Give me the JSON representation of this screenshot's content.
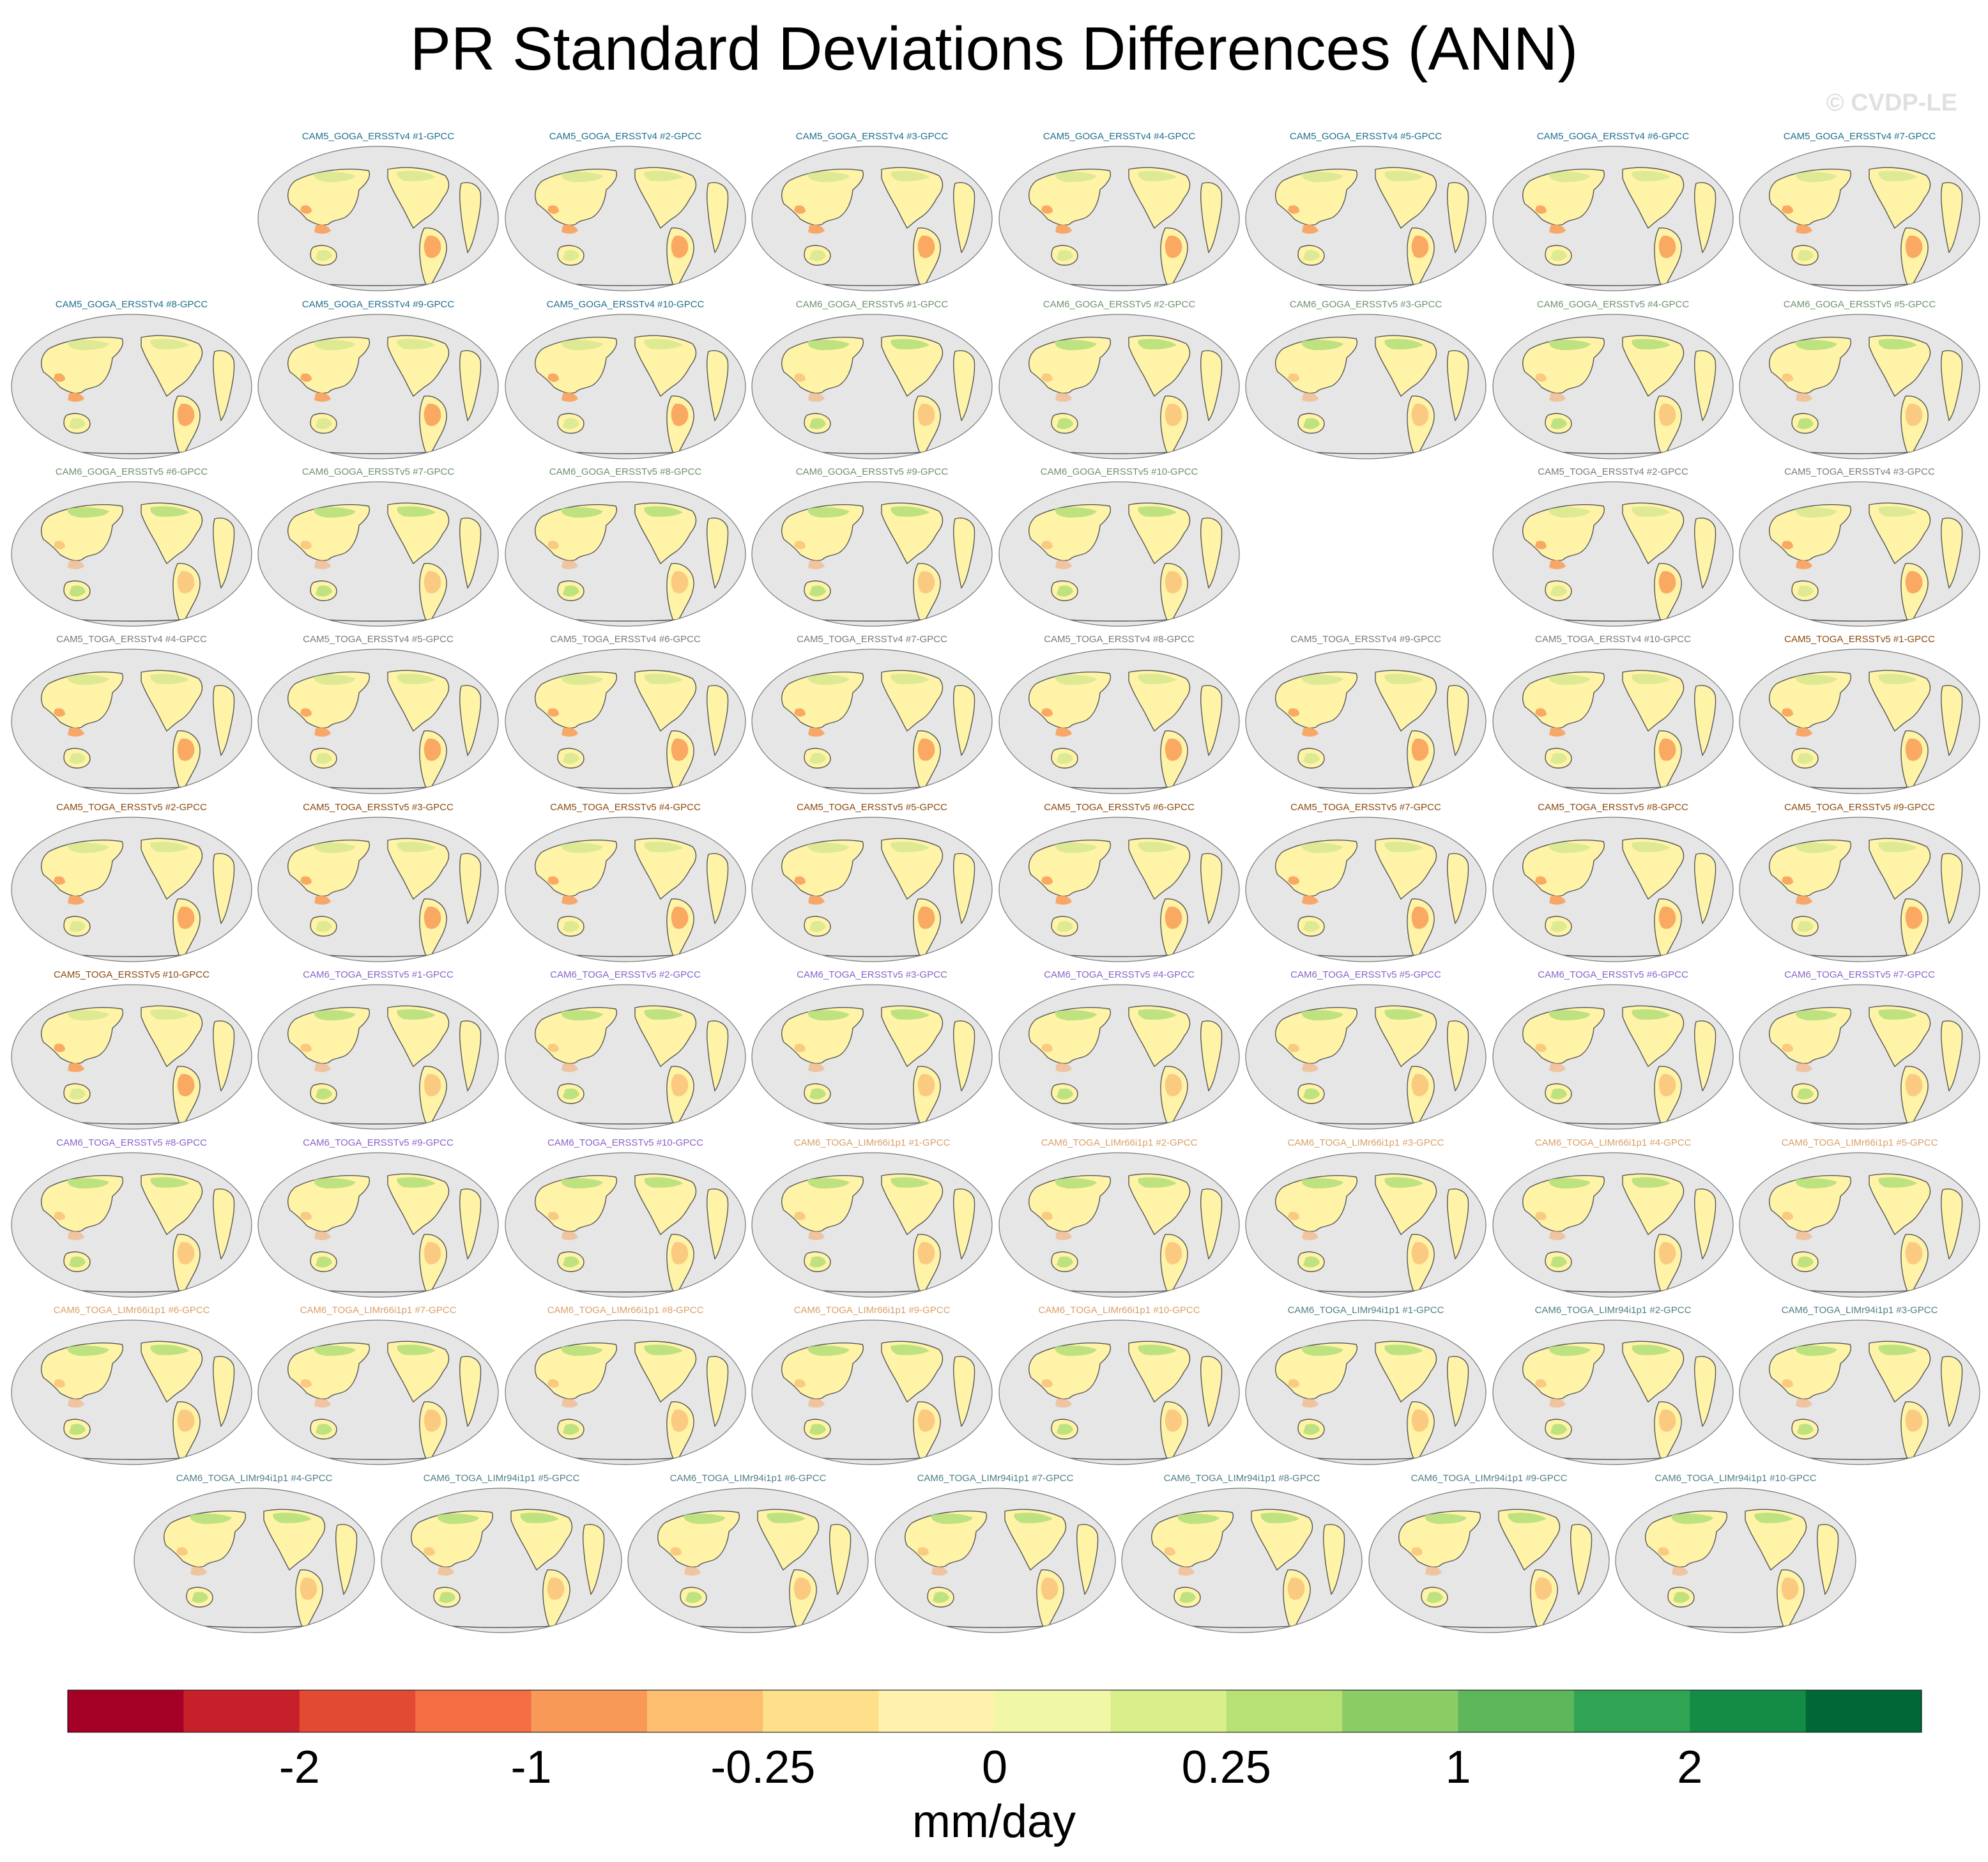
{
  "title": "PR Standard Deviations Differences (ANN)",
  "watermark": "© CVDP-LE",
  "chart_data": {
    "type": "heatmap",
    "projection": "global map (Robinson-like ellipse), Pacific-centered",
    "title": "PR Standard Deviations Differences (ANN)",
    "grid": false,
    "panels": [
      {
        "label": "CAM5_GOGA_ERSSTv4 #1-GPCC",
        "group": "CAM5_GOGA_ERSSTv4"
      },
      {
        "label": "CAM5_GOGA_ERSSTv4 #2-GPCC",
        "group": "CAM5_GOGA_ERSSTv4"
      },
      {
        "label": "CAM5_GOGA_ERSSTv4 #3-GPCC",
        "group": "CAM5_GOGA_ERSSTv4"
      },
      {
        "label": "CAM5_GOGA_ERSSTv4 #4-GPCC",
        "group": "CAM5_GOGA_ERSSTv4"
      },
      {
        "label": "CAM5_GOGA_ERSSTv4 #5-GPCC",
        "group": "CAM5_GOGA_ERSSTv4"
      },
      {
        "label": "CAM5_GOGA_ERSSTv4 #6-GPCC",
        "group": "CAM5_GOGA_ERSSTv4"
      },
      {
        "label": "CAM5_GOGA_ERSSTv4 #7-GPCC",
        "group": "CAM5_GOGA_ERSSTv4"
      },
      {
        "label": "CAM5_GOGA_ERSSTv4 #8-GPCC",
        "group": "CAM5_GOGA_ERSSTv4"
      },
      {
        "label": "CAM5_GOGA_ERSSTv4 #9-GPCC",
        "group": "CAM5_GOGA_ERSSTv4"
      },
      {
        "label": "CAM5_GOGA_ERSSTv4 #10-GPCC",
        "group": "CAM5_GOGA_ERSSTv4"
      },
      {
        "label": "CAM6_GOGA_ERSSTv5 #1-GPCC",
        "group": "CAM6_GOGA_ERSSTv5"
      },
      {
        "label": "CAM6_GOGA_ERSSTv5 #2-GPCC",
        "group": "CAM6_GOGA_ERSSTv5"
      },
      {
        "label": "CAM6_GOGA_ERSSTv5 #3-GPCC",
        "group": "CAM6_GOGA_ERSSTv5"
      },
      {
        "label": "CAM6_GOGA_ERSSTv5 #4-GPCC",
        "group": "CAM6_GOGA_ERSSTv5"
      },
      {
        "label": "CAM6_GOGA_ERSSTv5 #5-GPCC",
        "group": "CAM6_GOGA_ERSSTv5"
      },
      {
        "label": "CAM6_GOGA_ERSSTv5 #6-GPCC",
        "group": "CAM6_GOGA_ERSSTv5"
      },
      {
        "label": "CAM6_GOGA_ERSSTv5 #7-GPCC",
        "group": "CAM6_GOGA_ERSSTv5"
      },
      {
        "label": "CAM6_GOGA_ERSSTv5 #8-GPCC",
        "group": "CAM6_GOGA_ERSSTv5"
      },
      {
        "label": "CAM6_GOGA_ERSSTv5 #9-GPCC",
        "group": "CAM6_GOGA_ERSSTv5"
      },
      {
        "label": "CAM6_GOGA_ERSSTv5 #10-GPCC",
        "group": "CAM6_GOGA_ERSSTv5"
      },
      {
        "label": "CAM5_TOGA_ERSSTv4 #2-GPCC",
        "group": "CAM5_TOGA_ERSSTv4"
      },
      {
        "label": "CAM5_TOGA_ERSSTv4 #3-GPCC",
        "group": "CAM5_TOGA_ERSSTv4"
      },
      {
        "label": "CAM5_TOGA_ERSSTv4 #4-GPCC",
        "group": "CAM5_TOGA_ERSSTv4"
      },
      {
        "label": "CAM5_TOGA_ERSSTv4 #5-GPCC",
        "group": "CAM5_TOGA_ERSSTv4"
      },
      {
        "label": "CAM5_TOGA_ERSSTv4 #6-GPCC",
        "group": "CAM5_TOGA_ERSSTv4"
      },
      {
        "label": "CAM5_TOGA_ERSSTv4 #7-GPCC",
        "group": "CAM5_TOGA_ERSSTv4"
      },
      {
        "label": "CAM5_TOGA_ERSSTv4 #8-GPCC",
        "group": "CAM5_TOGA_ERSSTv4"
      },
      {
        "label": "CAM5_TOGA_ERSSTv4 #9-GPCC",
        "group": "CAM5_TOGA_ERSSTv4"
      },
      {
        "label": "CAM5_TOGA_ERSSTv4 #10-GPCC",
        "group": "CAM5_TOGA_ERSSTv4"
      },
      {
        "label": "CAM5_TOGA_ERSSTv5 #1-GPCC",
        "group": "CAM5_TOGA_ERSSTv5"
      },
      {
        "label": "CAM5_TOGA_ERSSTv5 #2-GPCC",
        "group": "CAM5_TOGA_ERSSTv5"
      },
      {
        "label": "CAM5_TOGA_ERSSTv5 #3-GPCC",
        "group": "CAM5_TOGA_ERSSTv5"
      },
      {
        "label": "CAM5_TOGA_ERSSTv5 #4-GPCC",
        "group": "CAM5_TOGA_ERSSTv5"
      },
      {
        "label": "CAM5_TOGA_ERSSTv5 #5-GPCC",
        "group": "CAM5_TOGA_ERSSTv5"
      },
      {
        "label": "CAM5_TOGA_ERSSTv5 #6-GPCC",
        "group": "CAM5_TOGA_ERSSTv5"
      },
      {
        "label": "CAM5_TOGA_ERSSTv5 #7-GPCC",
        "group": "CAM5_TOGA_ERSSTv5"
      },
      {
        "label": "CAM5_TOGA_ERSSTv5 #8-GPCC",
        "group": "CAM5_TOGA_ERSSTv5"
      },
      {
        "label": "CAM5_TOGA_ERSSTv5 #9-GPCC",
        "group": "CAM5_TOGA_ERSSTv5"
      },
      {
        "label": "CAM5_TOGA_ERSSTv5 #10-GPCC",
        "group": "CAM5_TOGA_ERSSTv5"
      },
      {
        "label": "CAM6_TOGA_ERSSTv5 #1-GPCC",
        "group": "CAM6_TOGA_ERSSTv5"
      },
      {
        "label": "CAM6_TOGA_ERSSTv5 #2-GPCC",
        "group": "CAM6_TOGA_ERSSTv5"
      },
      {
        "label": "CAM6_TOGA_ERSSTv5 #3-GPCC",
        "group": "CAM6_TOGA_ERSSTv5"
      },
      {
        "label": "CAM6_TOGA_ERSSTv5 #4-GPCC",
        "group": "CAM6_TOGA_ERSSTv5"
      },
      {
        "label": "CAM6_TOGA_ERSSTv5 #5-GPCC",
        "group": "CAM6_TOGA_ERSSTv5"
      },
      {
        "label": "CAM6_TOGA_ERSSTv5 #6-GPCC",
        "group": "CAM6_TOGA_ERSSTv5"
      },
      {
        "label": "CAM6_TOGA_ERSSTv5 #7-GPCC",
        "group": "CAM6_TOGA_ERSSTv5"
      },
      {
        "label": "CAM6_TOGA_ERSSTv5 #8-GPCC",
        "group": "CAM6_TOGA_ERSSTv5"
      },
      {
        "label": "CAM6_TOGA_ERSSTv5 #9-GPCC",
        "group": "CAM6_TOGA_ERSSTv5"
      },
      {
        "label": "CAM6_TOGA_ERSSTv5 #10-GPCC",
        "group": "CAM6_TOGA_ERSSTv5"
      },
      {
        "label": "CAM6_TOGA_LIMr66i1p1 #1-GPCC",
        "group": "CAM6_TOGA_LIMr66i1p1"
      },
      {
        "label": "CAM6_TOGA_LIMr66i1p1 #2-GPCC",
        "group": "CAM6_TOGA_LIMr66i1p1"
      },
      {
        "label": "CAM6_TOGA_LIMr66i1p1 #3-GPCC",
        "group": "CAM6_TOGA_LIMr66i1p1"
      },
      {
        "label": "CAM6_TOGA_LIMr66i1p1 #4-GPCC",
        "group": "CAM6_TOGA_LIMr66i1p1"
      },
      {
        "label": "CAM6_TOGA_LIMr66i1p1 #5-GPCC",
        "group": "CAM6_TOGA_LIMr66i1p1"
      },
      {
        "label": "CAM6_TOGA_LIMr66i1p1 #6-GPCC",
        "group": "CAM6_TOGA_LIMr66i1p1"
      },
      {
        "label": "CAM6_TOGA_LIMr66i1p1 #7-GPCC",
        "group": "CAM6_TOGA_LIMr66i1p1"
      },
      {
        "label": "CAM6_TOGA_LIMr66i1p1 #8-GPCC",
        "group": "CAM6_TOGA_LIMr66i1p1"
      },
      {
        "label": "CAM6_TOGA_LIMr66i1p1 #9-GPCC",
        "group": "CAM6_TOGA_LIMr66i1p1"
      },
      {
        "label": "CAM6_TOGA_LIMr66i1p1 #10-GPCC",
        "group": "CAM6_TOGA_LIMr66i1p1"
      },
      {
        "label": "CAM6_TOGA_LIMr94i1p1 #1-GPCC",
        "group": "CAM6_TOGA_LIMr94i1p1"
      },
      {
        "label": "CAM6_TOGA_LIMr94i1p1 #2-GPCC",
        "group": "CAM6_TOGA_LIMr94i1p1"
      },
      {
        "label": "CAM6_TOGA_LIMr94i1p1 #3-GPCC",
        "group": "CAM6_TOGA_LIMr94i1p1"
      },
      {
        "label": "CAM6_TOGA_LIMr94i1p1 #4-GPCC",
        "group": "CAM6_TOGA_LIMr94i1p1"
      },
      {
        "label": "CAM6_TOGA_LIMr94i1p1 #5-GPCC",
        "group": "CAM6_TOGA_LIMr94i1p1"
      },
      {
        "label": "CAM6_TOGA_LIMr94i1p1 #6-GPCC",
        "group": "CAM6_TOGA_LIMr94i1p1"
      },
      {
        "label": "CAM6_TOGA_LIMr94i1p1 #7-GPCC",
        "group": "CAM6_TOGA_LIMr94i1p1"
      },
      {
        "label": "CAM6_TOGA_LIMr94i1p1 #8-GPCC",
        "group": "CAM6_TOGA_LIMr94i1p1"
      },
      {
        "label": "CAM6_TOGA_LIMr94i1p1 #9-GPCC",
        "group": "CAM6_TOGA_LIMr94i1p1"
      },
      {
        "label": "CAM6_TOGA_LIMr94i1p1 #10-GPCC",
        "group": "CAM6_TOGA_LIMr94i1p1"
      }
    ],
    "group_colors": {
      "CAM5_GOGA_ERSSTv4": "#1f6e8c",
      "CAM6_GOGA_ERSSTv5": "#6f8f6f",
      "CAM5_TOGA_ERSSTv4": "#7a7a7a",
      "CAM5_TOGA_ERSSTv5": "#8a4a10",
      "CAM6_TOGA_ERSSTv5": "#8a63c9",
      "CAM6_TOGA_LIMr66i1p1": "#d9a06a",
      "CAM6_TOGA_LIMr94i1p1": "#4f7f86"
    },
    "map_colors": {
      "ocean": "#e6e6e6",
      "coast": "#555555",
      "land_base": "#fff3a8",
      "land_green": "#b6e07a",
      "land_orange": "#f8a15a"
    },
    "colorbar": {
      "unit": "mm/day",
      "colors": [
        "#a50026",
        "#c8202a",
        "#e34a33",
        "#f46d43",
        "#f89958",
        "#fdbf6f",
        "#fee08b",
        "#fff2ae",
        "#f0f8a8",
        "#d9ef8b",
        "#b7e075",
        "#8ccc65",
        "#5db75a",
        "#31a354",
        "#148c45",
        "#006837"
      ],
      "tick_labels": [
        "-2",
        "-1",
        "-0.25",
        "0",
        "0.25",
        "1",
        "2"
      ],
      "tick_boundaries": [
        2,
        4,
        6,
        8,
        10,
        12,
        14
      ]
    }
  }
}
